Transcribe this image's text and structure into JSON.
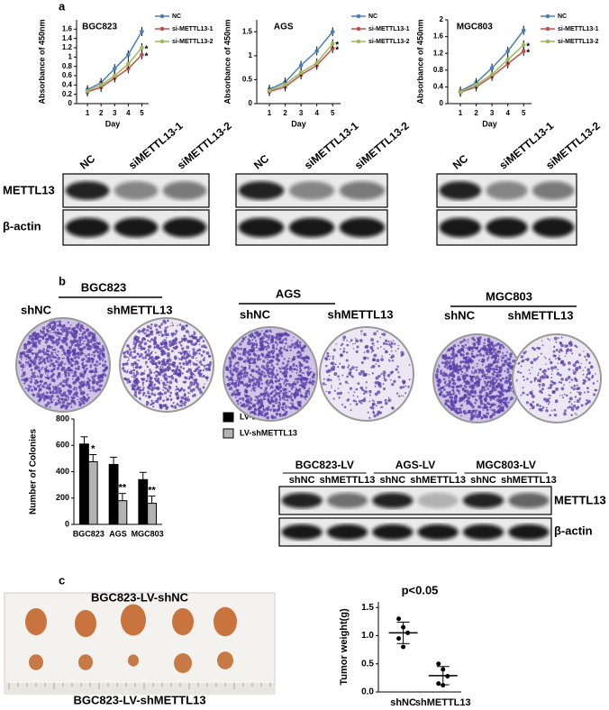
{
  "panel_labels": [
    "a",
    "b",
    "c"
  ],
  "chart_data": [
    {
      "type": "line",
      "title": "BGC823",
      "xlabel": "Day",
      "ylabel": "Absorbance of 450nm",
      "x": [
        1,
        2,
        3,
        4,
        5
      ],
      "xlim": [
        0.2,
        5.5
      ],
      "xticks": [
        1,
        2,
        3,
        4,
        5
      ],
      "ylim": [
        0,
        1.8
      ],
      "yticks": [
        0,
        0.2,
        0.4,
        0.6,
        0.8,
        1,
        1.2,
        1.4,
        1.6
      ],
      "series": [
        {
          "name": "NC",
          "color": "#4a7ebb",
          "values": [
            0.3,
            0.45,
            0.75,
            1.05,
            1.55
          ]
        },
        {
          "name": "si-METTL13-1",
          "color": "#c0504d",
          "values": [
            0.25,
            0.35,
            0.55,
            0.75,
            1.05
          ]
        },
        {
          "name": "si-METTL13-2",
          "color": "#9bbb59",
          "values": [
            0.27,
            0.4,
            0.6,
            0.85,
            1.2
          ]
        }
      ],
      "annotations": [
        "*",
        "*"
      ]
    },
    {
      "type": "line",
      "title": "AGS",
      "xlabel": "Day",
      "ylabel": "Absorbance of 450nm",
      "x": [
        1,
        2,
        3,
        4,
        5
      ],
      "xlim": [
        0.2,
        5.5
      ],
      "xticks": [
        1,
        2,
        3,
        4,
        5
      ],
      "ylim": [
        0,
        1.75
      ],
      "yticks": [
        0,
        0.5,
        1,
        1.5
      ],
      "series": [
        {
          "name": "NC",
          "color": "#4a7ebb",
          "values": [
            0.3,
            0.45,
            0.8,
            1.1,
            1.5
          ]
        },
        {
          "name": "si-METTL13-1",
          "color": "#c0504d",
          "values": [
            0.25,
            0.35,
            0.6,
            0.8,
            1.15
          ]
        },
        {
          "name": "si-METTL13-2",
          "color": "#9bbb59",
          "values": [
            0.27,
            0.4,
            0.65,
            0.85,
            1.25
          ]
        }
      ],
      "annotations": [
        "*",
        "*"
      ]
    },
    {
      "type": "line",
      "title": "MGC803",
      "xlabel": "Day",
      "ylabel": "Absorbance of 450nm",
      "x": [
        1,
        2,
        3,
        4,
        5
      ],
      "xlim": [
        0.2,
        5.5
      ],
      "xticks": [
        1,
        2,
        3,
        4,
        5
      ],
      "ylim": [
        0,
        2
      ],
      "yticks": [
        0,
        0.4,
        0.8,
        1.2,
        1.6,
        2
      ],
      "series": [
        {
          "name": "NC",
          "color": "#4a7ebb",
          "values": [
            0.3,
            0.5,
            0.85,
            1.25,
            1.75
          ]
        },
        {
          "name": "si-METTL13-1",
          "color": "#c0504d",
          "values": [
            0.27,
            0.4,
            0.65,
            0.95,
            1.25
          ]
        },
        {
          "name": "si-METTL13-2",
          "color": "#9bbb59",
          "values": [
            0.28,
            0.45,
            0.7,
            1.05,
            1.4
          ]
        }
      ],
      "annotations": [
        "*",
        "*"
      ]
    },
    {
      "type": "bar",
      "ylabel": "Number of Colonies",
      "categories": [
        "BGC823",
        "AGS",
        "MGC803"
      ],
      "ylim": [
        0,
        800
      ],
      "yticks": [
        0,
        200,
        400,
        600,
        800
      ],
      "legend": "right",
      "series": [
        {
          "name": "LV-shNC",
          "color": "#000000",
          "values": [
            610,
            455,
            340
          ]
        },
        {
          "name": "LV-shMETTL13",
          "color": "#b3b3b3",
          "values": [
            475,
            180,
            160
          ]
        }
      ],
      "annotations": [
        "*",
        "**",
        "**"
      ]
    },
    {
      "type": "dot",
      "title": "p<0.05",
      "ylabel": "Tumor weight(g)",
      "categories": [
        "shNC",
        "shMETTL13"
      ],
      "ylim": [
        0,
        1.6
      ],
      "yticks": [
        {
          "value": 0,
          "label": "0.0"
        },
        {
          "value": 0.5,
          "label": "0.5"
        },
        {
          "value": 1,
          "label": "1.0"
        },
        {
          "value": 1.5,
          "label": "1.5"
        }
      ],
      "values": [
        [
          1.3,
          1.15,
          1.05,
          0.95,
          0.8
        ],
        [
          0.5,
          0.4,
          0.28,
          0.15,
          0.12
        ]
      ]
    }
  ],
  "blots_a": {
    "lanes": [
      [
        "NC",
        "siMETTL13-1",
        "siMETTL13-2"
      ],
      [
        "NC",
        "siMETTL13-1",
        "siMETTL13-2"
      ],
      [
        "NC",
        "siMETTL13-1",
        "siMETTL13-2"
      ]
    ],
    "rows": [
      "METTL13",
      "β-actin"
    ]
  },
  "colonies": [
    {
      "cell": "BGC823",
      "groups": [
        "shNC",
        "shMETTL13"
      ]
    },
    {
      "cell": "AGS",
      "groups": [
        "shNC",
        "shMETTL13"
      ]
    },
    {
      "cell": "MGC803",
      "groups": [
        "shNC",
        "shMETTL13"
      ]
    }
  ],
  "blot_b": {
    "cells": [
      "BGC823-LV",
      "AGS-LV",
      "MGC803-LV"
    ],
    "lanes": [
      "shNC",
      "shMETTL13",
      "shNC",
      "shMETTL13",
      "shNC",
      "shMETTL13"
    ],
    "rows": [
      "METTL13",
      "β-actin"
    ]
  },
  "tumor_photo": {
    "top": "BGC823-LV-shNC",
    "bottom": "BGC823-LV-shMETTL13"
  }
}
